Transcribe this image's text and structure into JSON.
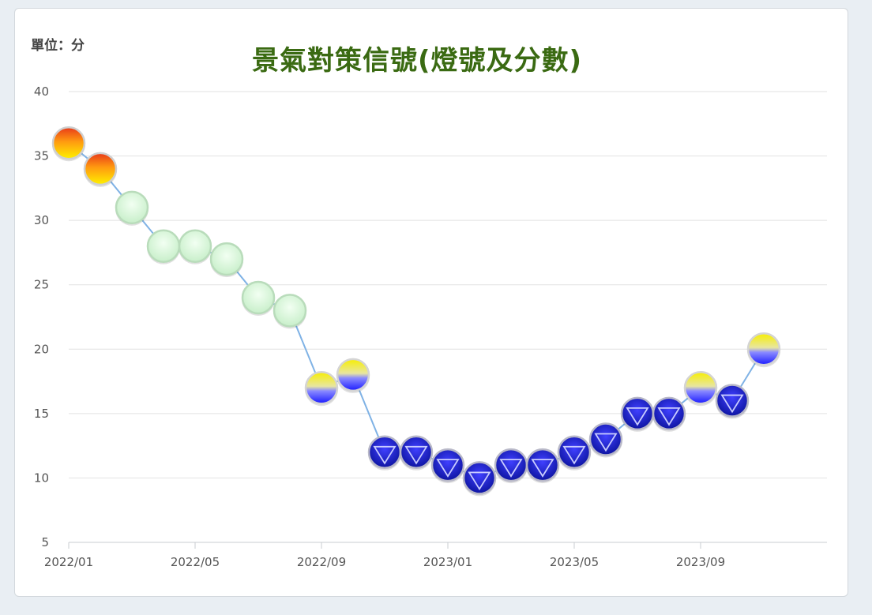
{
  "chart_data": {
    "type": "line",
    "title": "景氣對策信號(燈號及分數)",
    "unit_label": "單位：分",
    "ylim": [
      5,
      40
    ],
    "yticks": [
      "5",
      "10",
      "15",
      "20",
      "25",
      "30",
      "35",
      "40"
    ],
    "xticks": [
      {
        "label": "2022/01",
        "month_index": 0
      },
      {
        "label": "2022/05",
        "month_index": 4
      },
      {
        "label": "2022/09",
        "month_index": 8
      },
      {
        "label": "2023/01",
        "month_index": 12
      },
      {
        "label": "2023/05",
        "month_index": 16
      },
      {
        "label": "2023/09",
        "month_index": 20
      }
    ],
    "grid": true,
    "series": [
      {
        "points": [
          {
            "x": "2022/01",
            "y": 36,
            "signal": "red"
          },
          {
            "x": "2022/02",
            "y": 34,
            "signal": "red"
          },
          {
            "x": "2022/03",
            "y": 31,
            "signal": "green"
          },
          {
            "x": "2022/04",
            "y": 28,
            "signal": "green"
          },
          {
            "x": "2022/05",
            "y": 28,
            "signal": "green"
          },
          {
            "x": "2022/06",
            "y": 27,
            "signal": "green"
          },
          {
            "x": "2022/07",
            "y": 24,
            "signal": "green"
          },
          {
            "x": "2022/08",
            "y": 23,
            "signal": "green"
          },
          {
            "x": "2022/09",
            "y": 17,
            "signal": "yellow-blue"
          },
          {
            "x": "2022/10",
            "y": 18,
            "signal": "yellow-blue"
          },
          {
            "x": "2022/11",
            "y": 12,
            "signal": "blue"
          },
          {
            "x": "2022/12",
            "y": 12,
            "signal": "blue"
          },
          {
            "x": "2023/01",
            "y": 11,
            "signal": "blue"
          },
          {
            "x": "2023/02",
            "y": 10,
            "signal": "blue"
          },
          {
            "x": "2023/03",
            "y": 11,
            "signal": "blue"
          },
          {
            "x": "2023/04",
            "y": 11,
            "signal": "blue"
          },
          {
            "x": "2023/05",
            "y": 12,
            "signal": "blue"
          },
          {
            "x": "2023/06",
            "y": 13,
            "signal": "blue"
          },
          {
            "x": "2023/07",
            "y": 15,
            "signal": "blue"
          },
          {
            "x": "2023/08",
            "y": 15,
            "signal": "blue"
          },
          {
            "x": "2023/09",
            "y": 17,
            "signal": "yellow-blue"
          },
          {
            "x": "2023/10",
            "y": 16,
            "signal": "blue"
          },
          {
            "x": "2023/11",
            "y": 20,
            "signal": "yellow-blue"
          }
        ]
      }
    ],
    "colors": {
      "line": "#7fb2e5",
      "grid": "#e2e2e2",
      "title": "#3a6a12",
      "red_top": "#e83a12",
      "red_bottom": "#ffe600",
      "green_fill": "#d9f5da",
      "green_edge": "#b7dfb9",
      "yellow": "#f0e200",
      "blue_mid": "#3a3aff",
      "blue_dark": "#0a1aa8"
    }
  }
}
